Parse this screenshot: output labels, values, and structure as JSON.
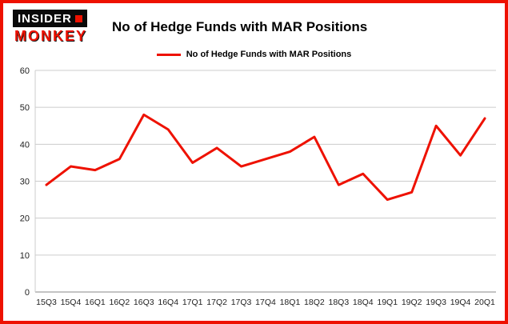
{
  "branding": {
    "logo_line1": "INSIDER",
    "logo_line2": "MONKEY"
  },
  "title": "No of Hedge Funds with MAR Positions",
  "legend": {
    "label": "No of Hedge Funds with MAR Positions"
  },
  "colors": {
    "line": "#ee1100",
    "border": "#ee1100",
    "grid": "#cccccc",
    "zero_line": "#888888",
    "tick_text": "#222222"
  },
  "chart_data": {
    "type": "line",
    "title": "No of Hedge Funds with MAR Positions",
    "categories": [
      "15Q3",
      "15Q4",
      "16Q1",
      "16Q2",
      "16Q3",
      "16Q4",
      "17Q1",
      "17Q2",
      "17Q3",
      "17Q4",
      "18Q1",
      "18Q2",
      "18Q3",
      "18Q4",
      "19Q1",
      "19Q2",
      "19Q3",
      "19Q4",
      "20Q1"
    ],
    "values": [
      29,
      34,
      33,
      36,
      48,
      44,
      35,
      39,
      34,
      36,
      38,
      42,
      29,
      32,
      25,
      27,
      45,
      37,
      47
    ],
    "series": [
      {
        "name": "No of Hedge Funds with MAR Positions",
        "values": [
          29,
          34,
          33,
          36,
          48,
          44,
          35,
          39,
          34,
          36,
          38,
          42,
          29,
          32,
          25,
          27,
          45,
          37,
          47
        ]
      }
    ],
    "xlabel": "",
    "ylabel": "",
    "ylim": [
      0,
      60
    ],
    "yticks": [
      0,
      10,
      20,
      30,
      40,
      50,
      60
    ],
    "grid": true,
    "legend_position": "top-center"
  }
}
